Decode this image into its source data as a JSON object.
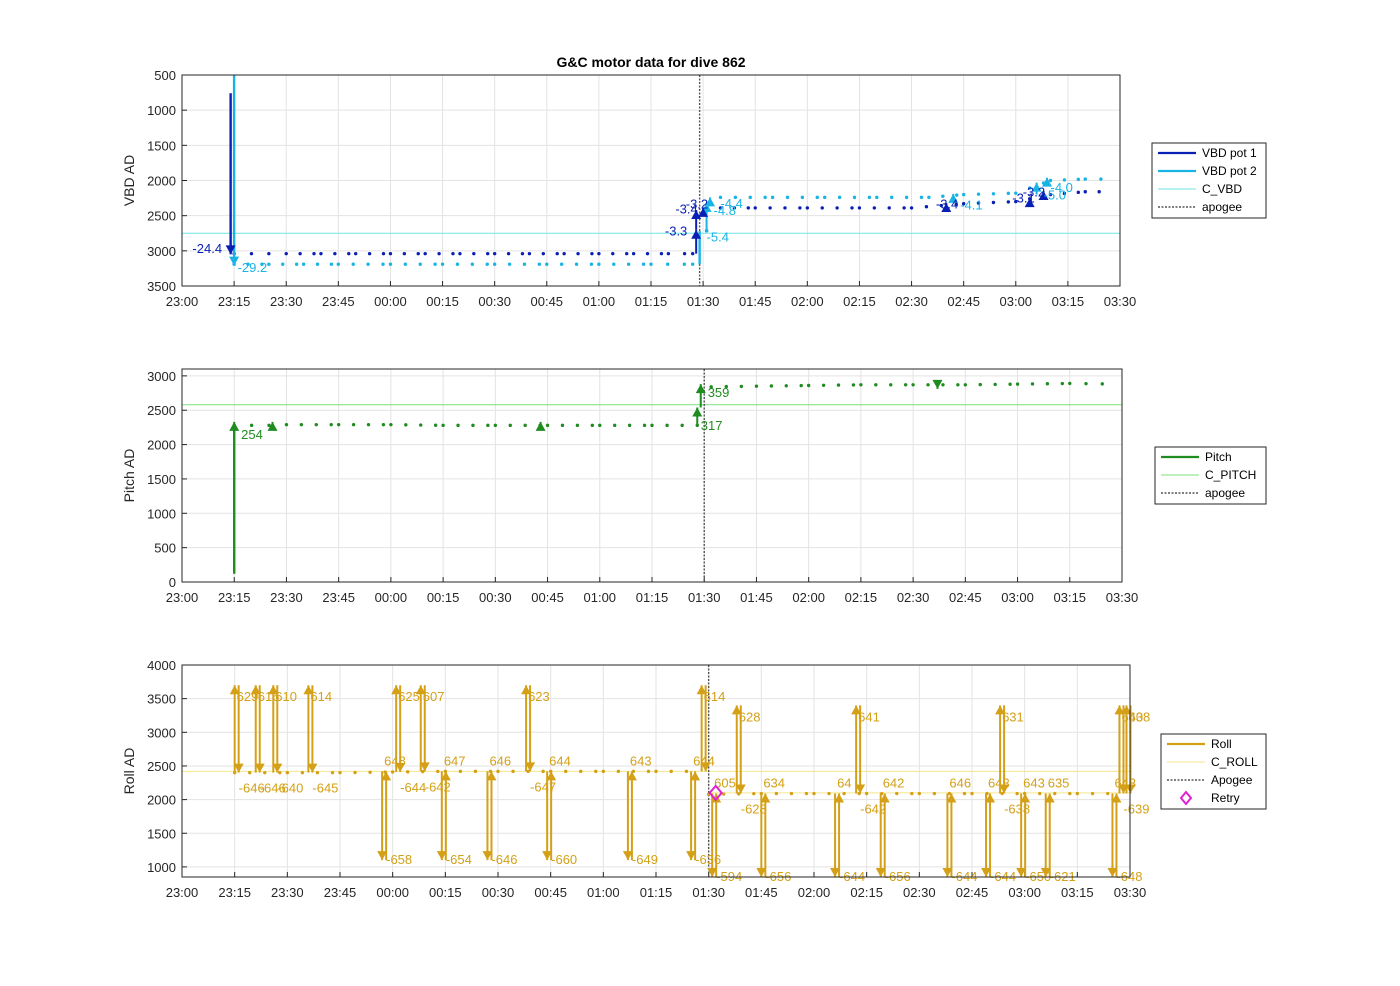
{
  "chart_data": [
    {
      "type": "line",
      "title": "G&C motor data for dive 862",
      "ylabel": "VBD AD",
      "ylim": [
        500,
        3500
      ],
      "y_reversed": true,
      "yticks": [
        500,
        1000,
        1500,
        2000,
        2500,
        3000,
        3500
      ],
      "xlim": [
        "23:00",
        "03:30"
      ],
      "xticks": [
        "23:00",
        "23:15",
        "23:30",
        "23:45",
        "00:00",
        "00:15",
        "00:30",
        "00:45",
        "01:00",
        "01:15",
        "01:30",
        "01:45",
        "02:00",
        "02:15",
        "02:30",
        "02:45",
        "03:00",
        "03:15",
        "03:30"
      ],
      "grid": true,
      "legend_position": "right",
      "colors": {
        "pot1": "#0a1fb4",
        "pot2": "#18b4e6",
        "c": "#6ee6e6",
        "apogee": "#555555"
      },
      "legend": [
        {
          "label": "VBD pot 1",
          "style": "line",
          "color": "#0a1fb4"
        },
        {
          "label": "VBD pot 2",
          "style": "line",
          "color": "#18b4e6"
        },
        {
          "label": "C_VBD",
          "style": "thin",
          "color": "#6ee6e6"
        },
        {
          "label": "apogee",
          "style": "dotted",
          "color": "#555555"
        }
      ],
      "c_value": 2750,
      "apogee_t": "01:29",
      "series": [
        {
          "key": "pot1",
          "color": "#0a1fb4",
          "points": [
            [
              "23:15",
              3040
            ],
            [
              "23:20",
              3040
            ],
            [
              "23:25",
              3040
            ],
            [
              "23:30",
              3040
            ],
            [
              "23:40",
              3040
            ],
            [
              "23:50",
              3040
            ],
            [
              "00:00",
              3040
            ],
            [
              "00:10",
              3040
            ],
            [
              "00:20",
              3040
            ],
            [
              "00:30",
              3040
            ],
            [
              "00:40",
              3040
            ],
            [
              "00:50",
              3040
            ],
            [
              "01:00",
              3040
            ],
            [
              "01:10",
              3040
            ],
            [
              "01:20",
              3040
            ],
            [
              "01:27",
              3040
            ],
            [
              "01:35",
              2390
            ],
            [
              "01:45",
              2390
            ],
            [
              "02:00",
              2390
            ],
            [
              "02:15",
              2390
            ],
            [
              "02:30",
              2390
            ],
            [
              "02:45",
              2330
            ],
            [
              "03:00",
              2300
            ],
            [
              "03:10",
              2200
            ],
            [
              "03:20",
              2160
            ],
            [
              "03:28",
              2160
            ]
          ]
        },
        {
          "key": "pot2",
          "color": "#18b4e6",
          "points": [
            [
              "23:15",
              3190
            ],
            [
              "23:25",
              3190
            ],
            [
              "23:35",
              3190
            ],
            [
              "23:45",
              3190
            ],
            [
              "00:00",
              3190
            ],
            [
              "00:15",
              3190
            ],
            [
              "00:30",
              3190
            ],
            [
              "00:45",
              3190
            ],
            [
              "01:00",
              3190
            ],
            [
              "01:15",
              3190
            ],
            [
              "01:27",
              3190
            ],
            [
              "01:35",
              2240
            ],
            [
              "01:50",
              2240
            ],
            [
              "02:05",
              2240
            ],
            [
              "02:20",
              2240
            ],
            [
              "02:35",
              2240
            ],
            [
              "02:45",
              2200
            ],
            [
              "03:00",
              2180
            ],
            [
              "03:10",
              2000
            ],
            [
              "03:20",
              1980
            ],
            [
              "03:29",
              1980
            ]
          ]
        }
      ],
      "spikes": [
        {
          "t": "23:14",
          "from": 3040,
          "to": 760,
          "color": "#0a1fb4"
        },
        {
          "t": "23:15",
          "from": 3190,
          "to": 500,
          "color": "#18b4e6"
        },
        {
          "t": "01:29",
          "from": 3190,
          "to": 2720,
          "color": "#18b4e6"
        }
      ],
      "arrows": [
        {
          "t": "23:14",
          "from": 2900,
          "to": 3050,
          "color": "#0a1fb4"
        },
        {
          "t": "23:15",
          "from": 3060,
          "to": 3210,
          "color": "#18b4e6"
        },
        {
          "t": "01:28",
          "from": 3040,
          "to": 2700,
          "color": "#0a1fb4"
        },
        {
          "t": "01:28",
          "from": 2700,
          "to": 2420,
          "color": "#0a1fb4"
        },
        {
          "t": "01:31",
          "from": 2720,
          "to": 2320,
          "color": "#18b4e6"
        },
        {
          "t": "01:32",
          "from": 2320,
          "to": 2240,
          "color": "#18b4e6"
        },
        {
          "t": "01:30",
          "from": 2420,
          "to": 2390,
          "color": "#0a1fb4"
        },
        {
          "t": "02:40",
          "from": 2390,
          "to": 2320,
          "color": "#0a1fb4"
        },
        {
          "t": "02:42",
          "from": 2240,
          "to": 2190,
          "color": "#18b4e6"
        },
        {
          "t": "03:04",
          "from": 2330,
          "to": 2250,
          "color": "#0a1fb4"
        },
        {
          "t": "03:06",
          "from": 2200,
          "to": 2030,
          "color": "#18b4e6"
        },
        {
          "t": "03:08",
          "from": 2250,
          "to": 2150,
          "color": "#0a1fb4"
        },
        {
          "t": "03:09",
          "from": 2030,
          "to": 1960,
          "color": "#18b4e6"
        }
      ],
      "labels": [
        {
          "text": "-24.4",
          "t": "23:03",
          "v": 3030,
          "color": "#0a1fb4"
        },
        {
          "text": "-29.2",
          "t": "23:16",
          "v": 3300,
          "color": "#18b4e6"
        },
        {
          "text": "-3.3",
          "t": "01:19",
          "v": 2780,
          "color": "#0a1fb4"
        },
        {
          "text": "-5.4",
          "t": "01:31",
          "v": 2870,
          "color": "#18b4e6"
        },
        {
          "text": "-3.4",
          "t": "01:22",
          "v": 2470,
          "color": "#0a1fb4"
        },
        {
          "text": "-3.2",
          "t": "01:25",
          "v": 2400,
          "color": "#0a1fb4"
        },
        {
          "text": "-4.8",
          "t": "01:33",
          "v": 2490,
          "color": "#18b4e6"
        },
        {
          "text": "-4.4",
          "t": "01:35",
          "v": 2390,
          "color": "#18b4e6"
        },
        {
          "text": "-3.4",
          "t": "02:37",
          "v": 2400,
          "color": "#0a1fb4"
        },
        {
          "text": "-4.1",
          "t": "02:44",
          "v": 2410,
          "color": "#18b4e6"
        },
        {
          "text": "-3.1",
          "t": "02:59",
          "v": 2310,
          "color": "#0a1fb4"
        },
        {
          "text": "-3.2",
          "t": "03:02",
          "v": 2230,
          "color": "#0a1fb4"
        },
        {
          "text": "-5.0",
          "t": "03:08",
          "v": 2270,
          "color": "#18b4e6"
        },
        {
          "text": "-4.0",
          "t": "03:10",
          "v": 2160,
          "color": "#18b4e6"
        }
      ]
    },
    {
      "type": "line",
      "title": "",
      "ylabel": "Pitch AD",
      "ylim": [
        0,
        3100
      ],
      "yticks": [
        0,
        500,
        1000,
        1500,
        2000,
        2500,
        3000
      ],
      "xlim": [
        "23:00",
        "03:30"
      ],
      "xticks": [
        "23:00",
        "23:15",
        "23:30",
        "23:45",
        "00:00",
        "00:15",
        "00:30",
        "00:45",
        "01:00",
        "01:15",
        "01:30",
        "01:45",
        "02:00",
        "02:15",
        "02:30",
        "02:45",
        "03:00",
        "03:15",
        "03:30"
      ],
      "grid": true,
      "legend_position": "right",
      "colors": {
        "pitch": "#1f8c1f",
        "c": "#7ee07e",
        "apogee": "#555555"
      },
      "legend": [
        {
          "label": "Pitch",
          "style": "line",
          "color": "#1f8c1f"
        },
        {
          "label": "C_PITCH",
          "style": "thin",
          "color": "#7ee07e"
        },
        {
          "label": "apogee",
          "style": "dotted",
          "color": "#555555"
        }
      ],
      "c_value": 2580,
      "apogee_t": "01:30",
      "series": [
        {
          "key": "pitch",
          "color": "#1f8c1f",
          "points": [
            [
              "23:15",
              2280
            ],
            [
              "23:20",
              2280
            ],
            [
              "23:25",
              2280
            ],
            [
              "23:30",
              2290
            ],
            [
              "23:45",
              2290
            ],
            [
              "00:00",
              2290
            ],
            [
              "00:15",
              2280
            ],
            [
              "00:30",
              2280
            ],
            [
              "00:45",
              2280
            ],
            [
              "01:00",
              2280
            ],
            [
              "01:15",
              2280
            ],
            [
              "01:28",
              2280
            ],
            [
              "01:32",
              2840
            ],
            [
              "01:45",
              2850
            ],
            [
              "02:00",
              2860
            ],
            [
              "02:15",
              2870
            ],
            [
              "02:30",
              2870
            ],
            [
              "02:45",
              2870
            ],
            [
              "03:00",
              2880
            ],
            [
              "03:15",
              2890
            ],
            [
              "03:29",
              2880
            ]
          ]
        }
      ],
      "spikes": [
        {
          "t": "23:15",
          "from": 120,
          "to": 2280,
          "color": "#1f8c1f"
        }
      ],
      "arrows": [
        {
          "t": "23:15",
          "from": 2250,
          "to": 2330,
          "color": "#1f8c1f"
        },
        {
          "t": "23:26",
          "from": 2250,
          "to": 2330,
          "color": "#1f8c1f"
        },
        {
          "t": "00:43",
          "from": 2250,
          "to": 2330,
          "color": "#1f8c1f"
        },
        {
          "t": "01:28",
          "from": 2280,
          "to": 2540,
          "color": "#1f8c1f"
        },
        {
          "t": "01:29",
          "from": 2540,
          "to": 2880,
          "color": "#1f8c1f"
        },
        {
          "t": "02:37",
          "from": 2880,
          "to": 2810,
          "color": "#1f8c1f"
        }
      ],
      "labels": [
        {
          "text": "254",
          "t": "23:17",
          "v": 2080,
          "color": "#1f8c1f"
        },
        {
          "text": "317",
          "t": "01:29",
          "v": 2210,
          "color": "#1f8c1f"
        },
        {
          "text": "359",
          "t": "01:31",
          "v": 2690,
          "color": "#1f8c1f"
        }
      ]
    },
    {
      "type": "line",
      "title": "",
      "ylabel": "Roll AD",
      "ylim": [
        850,
        4000
      ],
      "yticks": [
        1000,
        1500,
        2000,
        2500,
        3000,
        3500,
        4000
      ],
      "xlim": [
        "23:00",
        "03:30"
      ],
      "xticks": [
        "23:00",
        "23:15",
        "23:30",
        "23:45",
        "00:00",
        "00:15",
        "00:30",
        "00:45",
        "01:00",
        "01:15",
        "01:30",
        "01:45",
        "02:00",
        "02:15",
        "02:30",
        "02:45",
        "03:00",
        "03:15",
        "03:30"
      ],
      "grid": true,
      "legend_position": "right",
      "colors": {
        "roll": "#d4a017",
        "c": "#f5e68c",
        "apogee": "#555555",
        "retry": "#e020d0"
      },
      "legend": [
        {
          "label": "Roll",
          "style": "line",
          "color": "#d4a017"
        },
        {
          "label": "C_ROLL",
          "style": "thin",
          "color": "#f5e68c"
        },
        {
          "label": "Apogee",
          "style": "dotted",
          "color": "#555555"
        },
        {
          "label": "Retry",
          "style": "diamond",
          "color": "#e020d0"
        }
      ],
      "c_value": 2420,
      "c_value2": 2100,
      "apogee_t": "01:30",
      "retry": {
        "t": "01:32",
        "v": 2100
      },
      "series": [
        {
          "key": "roll_dive",
          "color": "#d4a017",
          "points": [
            [
              "23:15",
              2400
            ],
            [
              "23:30",
              2400
            ],
            [
              "23:45",
              2400
            ],
            [
              "00:00",
              2410
            ],
            [
              "00:15",
              2420
            ],
            [
              "00:30",
              2420
            ],
            [
              "00:45",
              2420
            ],
            [
              "01:00",
              2420
            ],
            [
              "01:15",
              2420
            ],
            [
              "01:28",
              2420
            ]
          ]
        },
        {
          "key": "roll_climb",
          "color": "#d4a017",
          "points": [
            [
              "01:30",
              2080
            ],
            [
              "01:45",
              2090
            ],
            [
              "02:00",
              2090
            ],
            [
              "02:15",
              2090
            ],
            [
              "02:30",
              2090
            ],
            [
              "02:45",
              2090
            ],
            [
              "03:00",
              2090
            ],
            [
              "03:15",
              2090
            ],
            [
              "03:28",
              2090
            ]
          ]
        }
      ],
      "pairs": [
        {
          "t": "23:15",
          "base": 2400,
          "peak": 3700,
          "up": "629",
          "down": "-646"
        },
        {
          "t": "23:21",
          "base": 2400,
          "peak": 3700,
          "up": "616",
          "down": "-646"
        },
        {
          "t": "23:26",
          "base": 2400,
          "peak": 3700,
          "up": "610",
          "down": "-640"
        },
        {
          "t": "23:36",
          "base": 2400,
          "peak": 3700,
          "up": "614",
          "down": "-645"
        },
        {
          "t": "00:01",
          "base": 2410,
          "peak": 3700,
          "up": "625",
          "down": "-644"
        },
        {
          "t": "00:08",
          "base": 2420,
          "peak": 3700,
          "up": "607",
          "down": "-642"
        },
        {
          "t": "00:38",
          "base": 2420,
          "peak": 3700,
          "up": "623",
          "down": "-647"
        },
        {
          "t": "01:28",
          "base": 2420,
          "peak": 3700,
          "up": "614",
          "down": ""
        },
        {
          "t": "01:38",
          "base": 2090,
          "peak": 3400,
          "up": "628",
          "down": "-628"
        },
        {
          "t": "02:12",
          "base": 2090,
          "peak": 3400,
          "up": "641",
          "down": "-642"
        },
        {
          "t": "02:53",
          "base": 2090,
          "peak": 3400,
          "up": "631",
          "down": "-638"
        },
        {
          "t": "03:27",
          "base": 2090,
          "peak": 3400,
          "up": "640",
          "down": "-639"
        },
        {
          "t": "03:29",
          "base": 2090,
          "peak": 3400,
          "up": "638",
          "down": ""
        }
      ],
      "dips": [
        {
          "t": "23:57",
          "base": 2420,
          "low": 1100,
          "down": "-658",
          "up": "648"
        },
        {
          "t": "00:14",
          "base": 2420,
          "low": 1100,
          "down": "-654",
          "up": "647"
        },
        {
          "t": "00:27",
          "base": 2420,
          "low": 1100,
          "down": "-646",
          "up": "646"
        },
        {
          "t": "00:44",
          "base": 2420,
          "low": 1100,
          "down": "-660",
          "up": "644"
        },
        {
          "t": "01:07",
          "base": 2420,
          "low": 1100,
          "down": "-649",
          "up": "643"
        },
        {
          "t": "01:25",
          "base": 2420,
          "low": 1100,
          "down": "-636",
          "up": "644"
        },
        {
          "t": "01:31",
          "base": 2090,
          "low": 850,
          "down": "-594",
          "up": "605"
        },
        {
          "t": "01:45",
          "base": 2090,
          "low": 850,
          "down": "-656",
          "up": "634"
        },
        {
          "t": "02:06",
          "base": 2090,
          "low": 850,
          "down": "-644",
          "up": "64"
        },
        {
          "t": "02:19",
          "base": 2090,
          "low": 850,
          "down": "-656",
          "up": "642"
        },
        {
          "t": "02:38",
          "base": 2090,
          "low": 850,
          "down": "-644",
          "up": "646"
        },
        {
          "t": "02:49",
          "base": 2090,
          "low": 850,
          "down": "-644",
          "up": "643"
        },
        {
          "t": "02:59",
          "base": 2090,
          "low": 850,
          "down": "-650",
          "up": "643"
        },
        {
          "t": "03:06",
          "base": 2090,
          "low": 850,
          "down": "-621",
          "up": "635"
        },
        {
          "t": "03:25",
          "base": 2090,
          "low": 850,
          "down": "-648",
          "up": "643"
        }
      ]
    }
  ]
}
